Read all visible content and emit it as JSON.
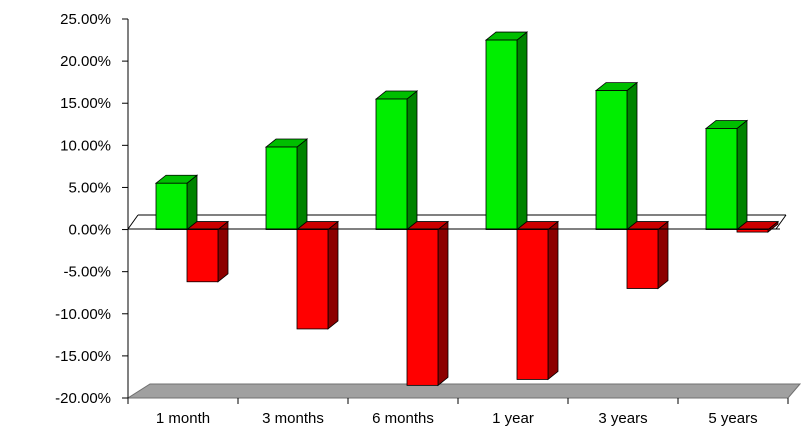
{
  "chart_data": {
    "type": "bar",
    "title": "",
    "xlabel": "",
    "ylabel": "",
    "categories": [
      "1 month",
      "3 months",
      "6 months",
      "1 year",
      "3 years",
      "5 years"
    ],
    "series": [
      {
        "values": [
          5.5,
          9.8,
          15.5,
          22.5,
          16.5,
          12.0
        ],
        "color": "#00ee00"
      },
      {
        "values": [
          -6.2,
          -11.8,
          -18.5,
          -17.8,
          -7.0,
          -0.3
        ],
        "color": "#ff0000"
      }
    ],
    "ylim": [
      -20,
      25
    ],
    "yticks": [
      "25.00%",
      "20.00%",
      "15.00%",
      "10.00%",
      "5.00%",
      "0.00%",
      "-5.00%",
      "-10.00%",
      "-15.00%",
      "-20.00%"
    ],
    "grid": false,
    "legend": "none",
    "style": "3d"
  }
}
